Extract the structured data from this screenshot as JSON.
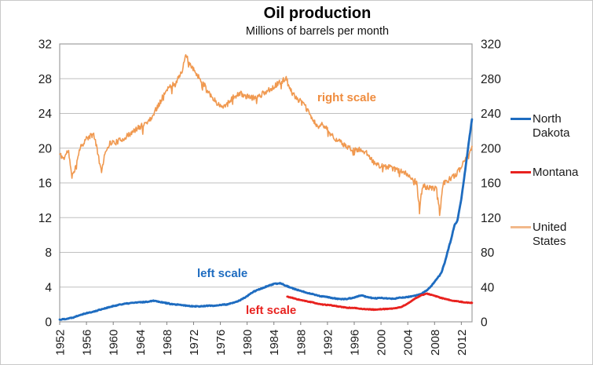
{
  "chart_data": {
    "type": "line",
    "title": "Oil production",
    "subtitle": "Millions of barrels per month",
    "grid": "horizontal",
    "legend_position": "right",
    "x_axis": {
      "range": [
        1952,
        2013.6
      ],
      "tick_years": [
        1952,
        1956,
        1960,
        1964,
        1968,
        1972,
        1976,
        1980,
        1984,
        1988,
        1992,
        1996,
        2000,
        2004,
        2008,
        2012
      ]
    },
    "left_axis": {
      "range": [
        0,
        32
      ],
      "ticks": [
        32,
        28,
        24,
        20,
        16,
        12,
        8,
        4,
        0
      ],
      "used_by": [
        "North Dakota",
        "Montana"
      ]
    },
    "right_axis": {
      "range": [
        0,
        320
      ],
      "ticks": [
        320,
        280,
        240,
        200,
        160,
        120,
        80,
        40,
        0
      ],
      "used_by": [
        "United States"
      ]
    },
    "annotations": [
      {
        "text": "right scale",
        "color": "#EF8C3E",
        "refers_to": "United States"
      },
      {
        "text": "left scale",
        "color": "#1E6CC0",
        "refers_to": "North Dakota"
      },
      {
        "text": "left scale",
        "color": "#E8221F",
        "refers_to": "Montana"
      }
    ],
    "series": [
      {
        "name": "United States",
        "axis": "right",
        "color": "#F09950",
        "points": [
          [
            1952,
            193
          ],
          [
            1952.6,
            188
          ],
          [
            1953.3,
            198
          ],
          [
            1953.8,
            166
          ],
          [
            1954.4,
            180
          ],
          [
            1955,
            200
          ],
          [
            1956,
            211
          ],
          [
            1957.1,
            216
          ],
          [
            1957.7,
            195
          ],
          [
            1958.2,
            172
          ],
          [
            1958.8,
            196
          ],
          [
            1959.5,
            206
          ],
          [
            1960.5,
            207
          ],
          [
            1961.5,
            211
          ],
          [
            1962.5,
            216
          ],
          [
            1963.5,
            222
          ],
          [
            1964.5,
            227
          ],
          [
            1965.5,
            233
          ],
          [
            1966.5,
            246
          ],
          [
            1967.5,
            261
          ],
          [
            1968.5,
            271
          ],
          [
            1969.5,
            277
          ],
          [
            1970.4,
            292
          ],
          [
            1970.9,
            308
          ],
          [
            1971.4,
            296
          ],
          [
            1972,
            290
          ],
          [
            1973,
            280
          ],
          [
            1974,
            268
          ],
          [
            1975,
            256
          ],
          [
            1976.2,
            247
          ],
          [
            1977,
            252
          ],
          [
            1978,
            259
          ],
          [
            1979,
            263
          ],
          [
            1980,
            259
          ],
          [
            1981,
            258
          ],
          [
            1982,
            261
          ],
          [
            1983,
            266
          ],
          [
            1984,
            271
          ],
          [
            1985,
            276
          ],
          [
            1985.8,
            281
          ],
          [
            1986.5,
            266
          ],
          [
            1987.5,
            257
          ],
          [
            1988.5,
            250
          ],
          [
            1989.5,
            237
          ],
          [
            1990.5,
            224
          ],
          [
            1991.3,
            228
          ],
          [
            1992.2,
            219
          ],
          [
            1993.2,
            211
          ],
          [
            1994.2,
            205
          ],
          [
            1995.2,
            200
          ],
          [
            1996.2,
            198
          ],
          [
            1997.2,
            198
          ],
          [
            1998.2,
            192
          ],
          [
            1999.2,
            181
          ],
          [
            2000.2,
            179
          ],
          [
            2001.2,
            178
          ],
          [
            2002.2,
            175
          ],
          [
            2003.2,
            174
          ],
          [
            2004.2,
            168
          ],
          [
            2005.3,
            161
          ],
          [
            2005.75,
            130
          ],
          [
            2006.2,
            156
          ],
          [
            2007,
            155
          ],
          [
            2008.4,
            153
          ],
          [
            2008.75,
            124
          ],
          [
            2009.3,
            159
          ],
          [
            2010,
            163
          ],
          [
            2011,
            168
          ],
          [
            2011.8,
            176
          ],
          [
            2012.4,
            186
          ],
          [
            2013,
            194
          ],
          [
            2013.6,
            200
          ]
        ]
      },
      {
        "name": "North Dakota",
        "axis": "left",
        "color": "#1E6CC0",
        "points": [
          [
            1952,
            0.25
          ],
          [
            1953,
            0.35
          ],
          [
            1954,
            0.5
          ],
          [
            1955,
            0.8
          ],
          [
            1956,
            1.0
          ],
          [
            1957,
            1.15
          ],
          [
            1958,
            1.4
          ],
          [
            1959,
            1.6
          ],
          [
            1960,
            1.8
          ],
          [
            1961,
            2.0
          ],
          [
            1962,
            2.1
          ],
          [
            1963,
            2.2
          ],
          [
            1964,
            2.25
          ],
          [
            1965,
            2.3
          ],
          [
            1966,
            2.45
          ],
          [
            1967,
            2.3
          ],
          [
            1968,
            2.15
          ],
          [
            1969,
            2.0
          ],
          [
            1970,
            1.95
          ],
          [
            1971,
            1.85
          ],
          [
            1972,
            1.8
          ],
          [
            1973,
            1.78
          ],
          [
            1974,
            1.85
          ],
          [
            1975,
            1.85
          ],
          [
            1976,
            1.95
          ],
          [
            1977,
            2.0
          ],
          [
            1978,
            2.2
          ],
          [
            1979,
            2.5
          ],
          [
            1980,
            2.95
          ],
          [
            1981,
            3.5
          ],
          [
            1982,
            3.8
          ],
          [
            1983,
            4.1
          ],
          [
            1984,
            4.35
          ],
          [
            1985,
            4.45
          ],
          [
            1986,
            4.1
          ],
          [
            1987,
            3.8
          ],
          [
            1988,
            3.55
          ],
          [
            1989,
            3.35
          ],
          [
            1990,
            3.15
          ],
          [
            1991,
            2.95
          ],
          [
            1992,
            2.85
          ],
          [
            1993,
            2.7
          ],
          [
            1994,
            2.6
          ],
          [
            1995,
            2.65
          ],
          [
            1996,
            2.8
          ],
          [
            1997,
            3.05
          ],
          [
            1998,
            2.85
          ],
          [
            1999,
            2.7
          ],
          [
            2000,
            2.75
          ],
          [
            2001,
            2.7
          ],
          [
            2002,
            2.65
          ],
          [
            2003,
            2.8
          ],
          [
            2004,
            2.85
          ],
          [
            2005,
            3.0
          ],
          [
            2006,
            3.2
          ],
          [
            2007,
            3.7
          ],
          [
            2008,
            4.6
          ],
          [
            2008.6,
            5.2
          ],
          [
            2009,
            5.6
          ],
          [
            2009.5,
            6.8
          ],
          [
            2010,
            8.2
          ],
          [
            2010.5,
            9.6
          ],
          [
            2011,
            11.2
          ],
          [
            2011.4,
            11.6
          ],
          [
            2012,
            14.2
          ],
          [
            2012.5,
            17.0
          ],
          [
            2013,
            20.0
          ],
          [
            2013.6,
            23.4
          ]
        ]
      },
      {
        "name": "Montana",
        "axis": "left",
        "color": "#E8221F",
        "points": [
          [
            1986,
            2.9
          ],
          [
            1987,
            2.7
          ],
          [
            1988,
            2.5
          ],
          [
            1989,
            2.35
          ],
          [
            1990,
            2.2
          ],
          [
            1991,
            2.0
          ],
          [
            1992,
            1.95
          ],
          [
            1993,
            1.85
          ],
          [
            1994,
            1.72
          ],
          [
            1995,
            1.62
          ],
          [
            1996,
            1.6
          ],
          [
            1997,
            1.5
          ],
          [
            1998,
            1.45
          ],
          [
            1999,
            1.4
          ],
          [
            2000,
            1.45
          ],
          [
            2001,
            1.5
          ],
          [
            2002,
            1.55
          ],
          [
            2003,
            1.7
          ],
          [
            2004,
            2.1
          ],
          [
            2005,
            2.65
          ],
          [
            2006,
            3.05
          ],
          [
            2006.9,
            3.25
          ],
          [
            2008,
            3.0
          ],
          [
            2009,
            2.75
          ],
          [
            2010,
            2.55
          ],
          [
            2011,
            2.4
          ],
          [
            2012,
            2.3
          ],
          [
            2013,
            2.2
          ],
          [
            2013.6,
            2.2
          ]
        ]
      }
    ]
  },
  "legend": {
    "items": [
      {
        "label": "North Dakota",
        "color": "#1E6CC0"
      },
      {
        "label": "Montana",
        "color": "#E8221F"
      },
      {
        "label": "United States",
        "color": "#F2B98B"
      }
    ]
  }
}
